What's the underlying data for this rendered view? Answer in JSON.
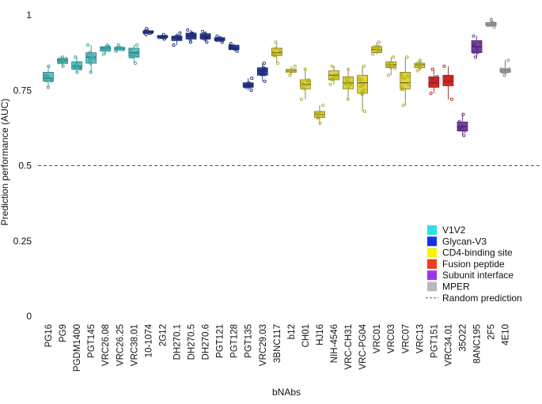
{
  "chart_data": {
    "type": "boxplot",
    "xlabel": "bNAbs",
    "ylabel": "Prediction performance (AUC)",
    "ylim": [
      0,
      1.05
    ],
    "yticks": [
      0,
      0.25,
      0.5,
      0.75,
      1
    ],
    "ytick_labels": [
      "0",
      "0.25",
      "0.5",
      "0.75",
      "1"
    ],
    "reference_line": 0.5,
    "legend": {
      "position": "bottom-right",
      "entries": [
        {
          "label": "V1V2",
          "color": "#2ce0e4",
          "kind": "box"
        },
        {
          "label": "Glycan-V3",
          "color": "#1533e6",
          "kind": "box"
        },
        {
          "label": "CD4-binding site",
          "color": "#f5f500",
          "kind": "box"
        },
        {
          "label": "Fusion peptide",
          "color": "#f03a1d",
          "kind": "box"
        },
        {
          "label": "Subunit interface",
          "color": "#9b35e8",
          "kind": "box"
        },
        {
          "label": "MPER",
          "color": "#b8b8b8",
          "kind": "box"
        },
        {
          "label": "Random prediction",
          "color": "#666666",
          "kind": "dash"
        }
      ]
    },
    "groups": {
      "V1V2": {
        "fill": "#5cc4c4",
        "stroke": "#2e6e6e",
        "point": "#3aa0a0"
      },
      "Glycan-V3": {
        "fill": "#2e3f9a",
        "stroke": "#1a2560",
        "point": "#1e2d7a"
      },
      "CD4-binding site": {
        "fill": "#dcd63a",
        "stroke": "#6e6a1e",
        "point": "#b0aa22"
      },
      "Fusion peptide": {
        "fill": "#e02a2a",
        "stroke": "#7a1616",
        "point": "#b81e1e"
      },
      "Subunit interface": {
        "fill": "#7a3fa8",
        "stroke": "#44205e",
        "point": "#5e2e86"
      },
      "MPER": {
        "fill": "#c4c4c4",
        "stroke": "#555555",
        "point": "#8a8a8a"
      }
    },
    "series": [
      {
        "name": "PG16",
        "group": "V1V2",
        "min": 0.76,
        "q1": 0.78,
        "median": 0.79,
        "q3": 0.81,
        "max": 0.83
      },
      {
        "name": "PG9",
        "group": "V1V2",
        "min": 0.83,
        "q1": 0.84,
        "median": 0.85,
        "q3": 0.855,
        "max": 0.86
      },
      {
        "name": "PGDM1400",
        "group": "V1V2",
        "min": 0.81,
        "q1": 0.82,
        "median": 0.83,
        "q3": 0.845,
        "max": 0.86
      },
      {
        "name": "PGT145",
        "group": "V1V2",
        "min": 0.81,
        "q1": 0.84,
        "median": 0.86,
        "q3": 0.875,
        "max": 0.9
      },
      {
        "name": "VRC26.08",
        "group": "V1V2",
        "min": 0.87,
        "q1": 0.88,
        "median": 0.89,
        "q3": 0.895,
        "max": 0.9
      },
      {
        "name": "VRC26.25",
        "group": "V1V2",
        "min": 0.88,
        "q1": 0.885,
        "median": 0.89,
        "q3": 0.893,
        "max": 0.9
      },
      {
        "name": "VRC38.01",
        "group": "V1V2",
        "min": 0.84,
        "q1": 0.86,
        "median": 0.875,
        "q3": 0.89,
        "max": 0.9
      },
      {
        "name": "10-1074",
        "group": "Glycan-V3",
        "min": 0.935,
        "q1": 0.94,
        "median": 0.945,
        "q3": 0.948,
        "max": 0.955
      },
      {
        "name": "2G12",
        "group": "Glycan-V3",
        "min": 0.92,
        "q1": 0.925,
        "median": 0.93,
        "q3": 0.932,
        "max": 0.935
      },
      {
        "name": "DH270.1",
        "group": "Glycan-V3",
        "min": 0.9,
        "q1": 0.915,
        "median": 0.925,
        "q3": 0.93,
        "max": 0.94
      },
      {
        "name": "DH270.5",
        "group": "Glycan-V3",
        "min": 0.91,
        "q1": 0.92,
        "median": 0.93,
        "q3": 0.94,
        "max": 0.95
      },
      {
        "name": "DH270.6",
        "group": "Glycan-V3",
        "min": 0.91,
        "q1": 0.92,
        "median": 0.93,
        "q3": 0.938,
        "max": 0.945
      },
      {
        "name": "PGT121",
        "group": "Glycan-V3",
        "min": 0.91,
        "q1": 0.915,
        "median": 0.92,
        "q3": 0.925,
        "max": 0.93
      },
      {
        "name": "PGT128",
        "group": "Glycan-V3",
        "min": 0.88,
        "q1": 0.885,
        "median": 0.89,
        "q3": 0.9,
        "max": 0.905
      },
      {
        "name": "PGT135",
        "group": "Glycan-V3",
        "min": 0.75,
        "q1": 0.76,
        "median": 0.765,
        "q3": 0.775,
        "max": 0.79
      },
      {
        "name": "VRC29.03",
        "group": "Glycan-V3",
        "min": 0.78,
        "q1": 0.8,
        "median": 0.815,
        "q3": 0.825,
        "max": 0.84
      },
      {
        "name": "3BNC117",
        "group": "CD4-binding site",
        "min": 0.84,
        "q1": 0.865,
        "median": 0.875,
        "q3": 0.89,
        "max": 0.91
      },
      {
        "name": "b12",
        "group": "CD4-binding site",
        "min": 0.8,
        "q1": 0.81,
        "median": 0.815,
        "q3": 0.82,
        "max": 0.83
      },
      {
        "name": "CH01",
        "group": "CD4-binding site",
        "min": 0.72,
        "q1": 0.755,
        "median": 0.77,
        "q3": 0.785,
        "max": 0.82
      },
      {
        "name": "HJ16",
        "group": "CD4-binding site",
        "min": 0.64,
        "q1": 0.66,
        "median": 0.67,
        "q3": 0.68,
        "max": 0.7
      },
      {
        "name": "NIH-4546",
        "group": "CD4-binding site",
        "min": 0.77,
        "q1": 0.785,
        "median": 0.8,
        "q3": 0.815,
        "max": 0.83
      },
      {
        "name": "VRC-CH31",
        "group": "CD4-binding site",
        "min": 0.72,
        "q1": 0.755,
        "median": 0.775,
        "q3": 0.795,
        "max": 0.82
      },
      {
        "name": "VRC-PG04",
        "group": "CD4-binding site",
        "min": 0.68,
        "q1": 0.74,
        "median": 0.775,
        "q3": 0.8,
        "max": 0.83
      },
      {
        "name": "VRC01",
        "group": "CD4-binding site",
        "min": 0.87,
        "q1": 0.875,
        "median": 0.885,
        "q3": 0.895,
        "max": 0.91
      },
      {
        "name": "VRC03",
        "group": "CD4-binding site",
        "min": 0.8,
        "q1": 0.825,
        "median": 0.835,
        "q3": 0.845,
        "max": 0.86
      },
      {
        "name": "VRC07",
        "group": "CD4-binding site",
        "min": 0.7,
        "q1": 0.755,
        "median": 0.775,
        "q3": 0.81,
        "max": 0.86
      },
      {
        "name": "VRC13",
        "group": "CD4-binding site",
        "min": 0.815,
        "q1": 0.825,
        "median": 0.835,
        "q3": 0.84,
        "max": 0.85
      },
      {
        "name": "PGT151",
        "group": "Fusion peptide",
        "min": 0.74,
        "q1": 0.76,
        "median": 0.775,
        "q3": 0.795,
        "max": 0.82
      },
      {
        "name": "VRC34.01",
        "group": "Fusion peptide",
        "min": 0.72,
        "q1": 0.765,
        "median": 0.78,
        "q3": 0.8,
        "max": 0.83
      },
      {
        "name": "35O22",
        "group": "Subunit interface",
        "min": 0.6,
        "q1": 0.615,
        "median": 0.63,
        "q3": 0.645,
        "max": 0.67
      },
      {
        "name": "8ANC195",
        "group": "Subunit interface",
        "min": 0.86,
        "q1": 0.875,
        "median": 0.895,
        "q3": 0.915,
        "max": 0.93
      },
      {
        "name": "2F5",
        "group": "MPER",
        "min": 0.96,
        "q1": 0.965,
        "median": 0.97,
        "q3": 0.975,
        "max": 0.985
      },
      {
        "name": "4E10",
        "group": "MPER",
        "min": 0.8,
        "q1": 0.81,
        "median": 0.815,
        "q3": 0.82,
        "max": 0.85
      }
    ]
  }
}
